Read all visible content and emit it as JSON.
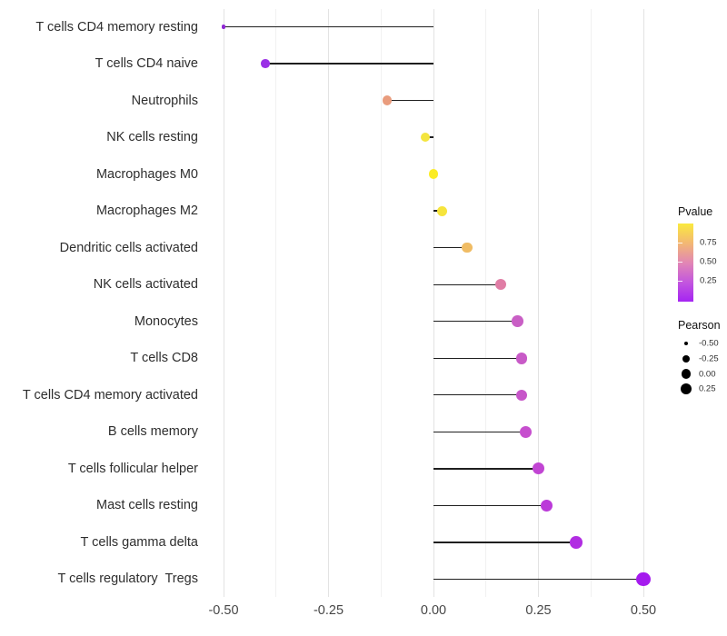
{
  "chart_data": {
    "type": "lollipop",
    "orientation": "horizontal",
    "title": "",
    "xlabel": "",
    "ylabel": "",
    "categories": [
      "T cells CD4 memory resting",
      "T cells CD4 naive",
      "Neutrophils",
      "NK cells resting",
      "Macrophages M0",
      "Macrophages M2",
      "Dendritic cells activated",
      "NK cells activated",
      "Monocytes",
      "T cells CD8",
      "T cells CD4 memory activated",
      "B cells memory",
      "T cells follicular helper",
      "Mast cells resting",
      "T cells gamma delta",
      "T cells regulatory  Tregs"
    ],
    "values": [
      -0.5,
      -0.4,
      -0.11,
      -0.02,
      0.0,
      0.02,
      0.08,
      0.16,
      0.2,
      0.21,
      0.21,
      0.22,
      0.25,
      0.27,
      0.34,
      0.5
    ],
    "point_colors": [
      "#8F27D3",
      "#9A30E6",
      "#E99C7D",
      "#F4E53F",
      "#FBEC25",
      "#F6E43C",
      "#F0BC64",
      "#E07DA5",
      "#C95FC5",
      "#C85AC7",
      "#C756C9",
      "#C64FCE",
      "#C145D3",
      "#BB3AD9",
      "#B12DE2",
      "#A51BEE"
    ],
    "point_diameters": [
      4.5,
      9.5,
      10.5,
      10.5,
      10.5,
      11,
      11.5,
      12,
      12.5,
      12.5,
      12.5,
      13,
      13,
      13,
      13.5,
      15.5
    ],
    "baseline": 0,
    "xlim": [
      -0.553,
      0.547
    ],
    "x_ticks": [
      -0.5,
      -0.25,
      0.0,
      0.25,
      0.5
    ],
    "x_tick_labels": [
      "-0.50",
      "-0.25",
      "0.00",
      "0.25",
      "0.50"
    ],
    "grid_major": [
      -0.5,
      -0.25,
      0.0,
      0.25,
      0.5
    ],
    "grid_minor": [
      -0.375,
      -0.125,
      0.125,
      0.375
    ],
    "grid": "on",
    "legend_position": "right"
  },
  "legend": {
    "color": {
      "title": "Pvalue",
      "gradient_top_to_bottom": [
        "#FAE93E",
        "#F3B873",
        "#E287B4",
        "#C357DE",
        "#A524F2"
      ],
      "ticks": [
        {
          "label": "0.75",
          "frac_from_top": 0.24
        },
        {
          "label": "0.50",
          "frac_from_top": 0.49
        },
        {
          "label": "0.25",
          "frac_from_top": 0.73
        }
      ]
    },
    "size": {
      "title": "Pearson",
      "items": [
        {
          "label": "-0.50",
          "diameter": 4
        },
        {
          "label": "-0.25",
          "diameter": 8.5
        },
        {
          "label": "0.00",
          "diameter": 10.5
        },
        {
          "label": "0.25",
          "diameter": 12
        }
      ]
    }
  }
}
